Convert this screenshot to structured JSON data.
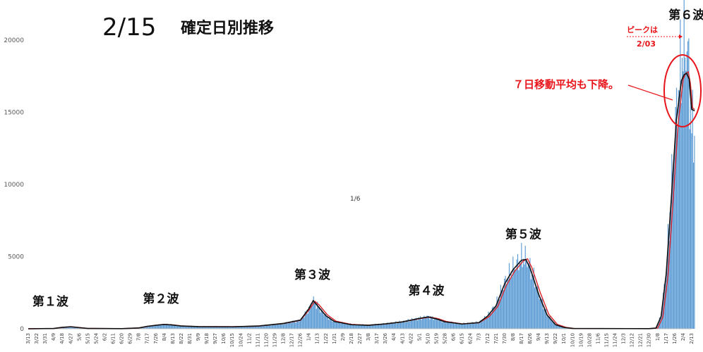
{
  "header": {
    "date": "2/15",
    "subtitle": "確定日別推移"
  },
  "page_marker": "1/6",
  "colors": {
    "bar": "#5b9bd5",
    "avg_black": "#111111",
    "avg_red": "#d9262c",
    "annotation": "#e8141a",
    "axis": "#bfbfbf"
  },
  "annotations": {
    "peak_label": "ピークは",
    "peak_date": "2/03",
    "avg_note": "７日移動平均も下降。"
  },
  "chart_data": {
    "type": "bar",
    "ylim": [
      0,
      20000
    ],
    "y_ticks": [
      "0",
      "5000",
      "10000",
      "15000",
      "20000"
    ],
    "y_tick_values": [
      0,
      5000,
      10000,
      15000,
      20000
    ],
    "grid": false,
    "x_tick_labels": [
      "3/13",
      "3/22",
      "3/31",
      "4/9",
      "4/18",
      "4/27",
      "5/6",
      "5/15",
      "5/24",
      "6/2",
      "6/11",
      "6/20",
      "6/29",
      "7/8",
      "7/17",
      "7/26",
      "8/4",
      "8/13",
      "8/22",
      "8/31",
      "9/9",
      "9/18",
      "9/27",
      "10/6",
      "10/15",
      "10/24",
      "11/2",
      "11/11",
      "11/20",
      "11/29",
      "12/8",
      "12/17",
      "12/26",
      "1/4",
      "1/13",
      "1/22",
      "1/31",
      "2/9",
      "2/18",
      "2/27",
      "3/8",
      "3/17",
      "3/26",
      "4/4",
      "4/13",
      "4/22",
      "5/1",
      "5/10",
      "5/19",
      "5/28",
      "6/6",
      "6/15",
      "6/24",
      "7/3",
      "7/12",
      "7/21",
      "7/30",
      "8/8",
      "8/17",
      "8/26",
      "9/4",
      "9/13",
      "9/22",
      "10/1",
      "10/10",
      "10/19",
      "10/28",
      "11/6",
      "11/15",
      "11/24",
      "12/3",
      "12/12",
      "12/21",
      "12/30",
      "1/8",
      "1/17",
      "1/26",
      "2/4",
      "2/13"
    ],
    "days_per_tick": 9,
    "waves": [
      {
        "label": "第１波",
        "tick_index": 2.6,
        "value": 150
      },
      {
        "label": "第２波",
        "tick_index": 15.6,
        "value": 350
      },
      {
        "label": "第３波",
        "tick_index": 33.4,
        "value": 2000
      },
      {
        "label": "第４波",
        "tick_index": 46.8,
        "value": 900
      },
      {
        "label": "第５波",
        "tick_index": 58.2,
        "value": 4800
      },
      {
        "label": "第６波",
        "tick_index": 77.4,
        "value": 20000
      }
    ],
    "series": [
      {
        "name": "",
        "kind": "bar",
        "keyframes": [
          [
            0,
            0
          ],
          [
            3,
            20
          ],
          [
            4,
            100
          ],
          [
            5,
            150
          ],
          [
            6,
            80
          ],
          [
            7,
            20
          ],
          [
            11,
            10
          ],
          [
            13,
            60
          ],
          [
            14,
            180
          ],
          [
            15,
            250
          ],
          [
            16,
            320
          ],
          [
            17,
            280
          ],
          [
            18,
            200
          ],
          [
            20,
            160
          ],
          [
            24,
            150
          ],
          [
            27,
            200
          ],
          [
            30,
            380
          ],
          [
            32,
            600
          ],
          [
            33,
            1400
          ],
          [
            33.5,
            2000
          ],
          [
            34,
            1600
          ],
          [
            35,
            900
          ],
          [
            36,
            500
          ],
          [
            38,
            300
          ],
          [
            40,
            250
          ],
          [
            42,
            350
          ],
          [
            44,
            500
          ],
          [
            46,
            750
          ],
          [
            47,
            850
          ],
          [
            48,
            700
          ],
          [
            49,
            500
          ],
          [
            51,
            350
          ],
          [
            53,
            450
          ],
          [
            54,
            900
          ],
          [
            55,
            1700
          ],
          [
            56,
            3200
          ],
          [
            57,
            4200
          ],
          [
            58,
            4900
          ],
          [
            58.5,
            4900
          ],
          [
            59,
            4300
          ],
          [
            60,
            2500
          ],
          [
            61,
            1000
          ],
          [
            62,
            300
          ],
          [
            63,
            100
          ],
          [
            64,
            20
          ],
          [
            73,
            10
          ],
          [
            73.8,
            50
          ],
          [
            74.4,
            900
          ],
          [
            75,
            4000
          ],
          [
            75.6,
            9500
          ],
          [
            76.2,
            15000
          ],
          [
            76.8,
            18600
          ],
          [
            77.1,
            19400
          ],
          [
            77.4,
            19800
          ],
          [
            77.7,
            17800
          ],
          [
            78,
            14000
          ],
          [
            78.35,
            13500
          ]
        ]
      },
      {
        "name": "",
        "kind": "line",
        "color_key": "avg_black",
        "keyframes": [
          [
            0,
            0
          ],
          [
            3,
            20
          ],
          [
            4,
            100
          ],
          [
            5,
            140
          ],
          [
            6,
            80
          ],
          [
            7,
            20
          ],
          [
            11,
            10
          ],
          [
            13,
            60
          ],
          [
            14,
            170
          ],
          [
            15,
            240
          ],
          [
            16,
            300
          ],
          [
            17,
            260
          ],
          [
            18,
            190
          ],
          [
            20,
            150
          ],
          [
            24,
            140
          ],
          [
            27,
            190
          ],
          [
            30,
            370
          ],
          [
            32,
            600
          ],
          [
            33,
            1400
          ],
          [
            33.5,
            1950
          ],
          [
            34,
            1600
          ],
          [
            35,
            900
          ],
          [
            36,
            500
          ],
          [
            38,
            280
          ],
          [
            40,
            240
          ],
          [
            42,
            340
          ],
          [
            44,
            480
          ],
          [
            46,
            720
          ],
          [
            47,
            820
          ],
          [
            48,
            680
          ],
          [
            49,
            480
          ],
          [
            51,
            330
          ],
          [
            53,
            430
          ],
          [
            54,
            880
          ],
          [
            55,
            1600
          ],
          [
            56,
            3100
          ],
          [
            57,
            4100
          ],
          [
            58,
            4750
          ],
          [
            58.5,
            4800
          ],
          [
            59,
            4200
          ],
          [
            60,
            2400
          ],
          [
            61,
            950
          ],
          [
            62,
            280
          ],
          [
            63,
            90
          ],
          [
            64,
            20
          ],
          [
            73,
            10
          ],
          [
            73.8,
            50
          ],
          [
            74.4,
            850
          ],
          [
            75,
            3800
          ],
          [
            75.6,
            9000
          ],
          [
            76.2,
            14500
          ],
          [
            76.8,
            17200
          ],
          [
            77.1,
            17600
          ],
          [
            77.4,
            17700
          ],
          [
            77.7,
            17300
          ],
          [
            78,
            15200
          ],
          [
            78.35,
            15100
          ]
        ]
      },
      {
        "name": "",
        "kind": "line",
        "color_key": "avg_red",
        "keyframes": [
          [
            0,
            0
          ],
          [
            3,
            20
          ],
          [
            4,
            90
          ],
          [
            5,
            140
          ],
          [
            6,
            90
          ],
          [
            7,
            25
          ],
          [
            11,
            10
          ],
          [
            13,
            55
          ],
          [
            14,
            160
          ],
          [
            15,
            240
          ],
          [
            16,
            300
          ],
          [
            17,
            270
          ],
          [
            18,
            200
          ],
          [
            20,
            150
          ],
          [
            24,
            140
          ],
          [
            27,
            180
          ],
          [
            30,
            360
          ],
          [
            32,
            580
          ],
          [
            33,
            1300
          ],
          [
            33.7,
            1900
          ],
          [
            34.2,
            1650
          ],
          [
            35.2,
            950
          ],
          [
            36.2,
            520
          ],
          [
            38,
            300
          ],
          [
            40,
            250
          ],
          [
            42,
            330
          ],
          [
            44,
            470
          ],
          [
            46,
            700
          ],
          [
            47.2,
            810
          ],
          [
            48.2,
            700
          ],
          [
            49.2,
            500
          ],
          [
            51,
            340
          ],
          [
            53,
            420
          ],
          [
            54.2,
            850
          ],
          [
            55.2,
            1550
          ],
          [
            56.2,
            3000
          ],
          [
            57.2,
            4000
          ],
          [
            58.2,
            4700
          ],
          [
            58.7,
            4850
          ],
          [
            59.2,
            4250
          ],
          [
            60.2,
            2500
          ],
          [
            61.2,
            1000
          ],
          [
            62.2,
            300
          ],
          [
            63.2,
            100
          ],
          [
            64.2,
            20
          ],
          [
            73,
            10
          ],
          [
            74,
            50
          ],
          [
            74.6,
            800
          ],
          [
            75.2,
            3600
          ],
          [
            75.8,
            8800
          ],
          [
            76.4,
            14200
          ],
          [
            77,
            17300
          ],
          [
            77.3,
            17700
          ],
          [
            77.6,
            17800
          ],
          [
            77.85,
            17000
          ],
          [
            78.1,
            15300
          ],
          [
            78.35,
            15200
          ]
        ]
      }
    ]
  }
}
